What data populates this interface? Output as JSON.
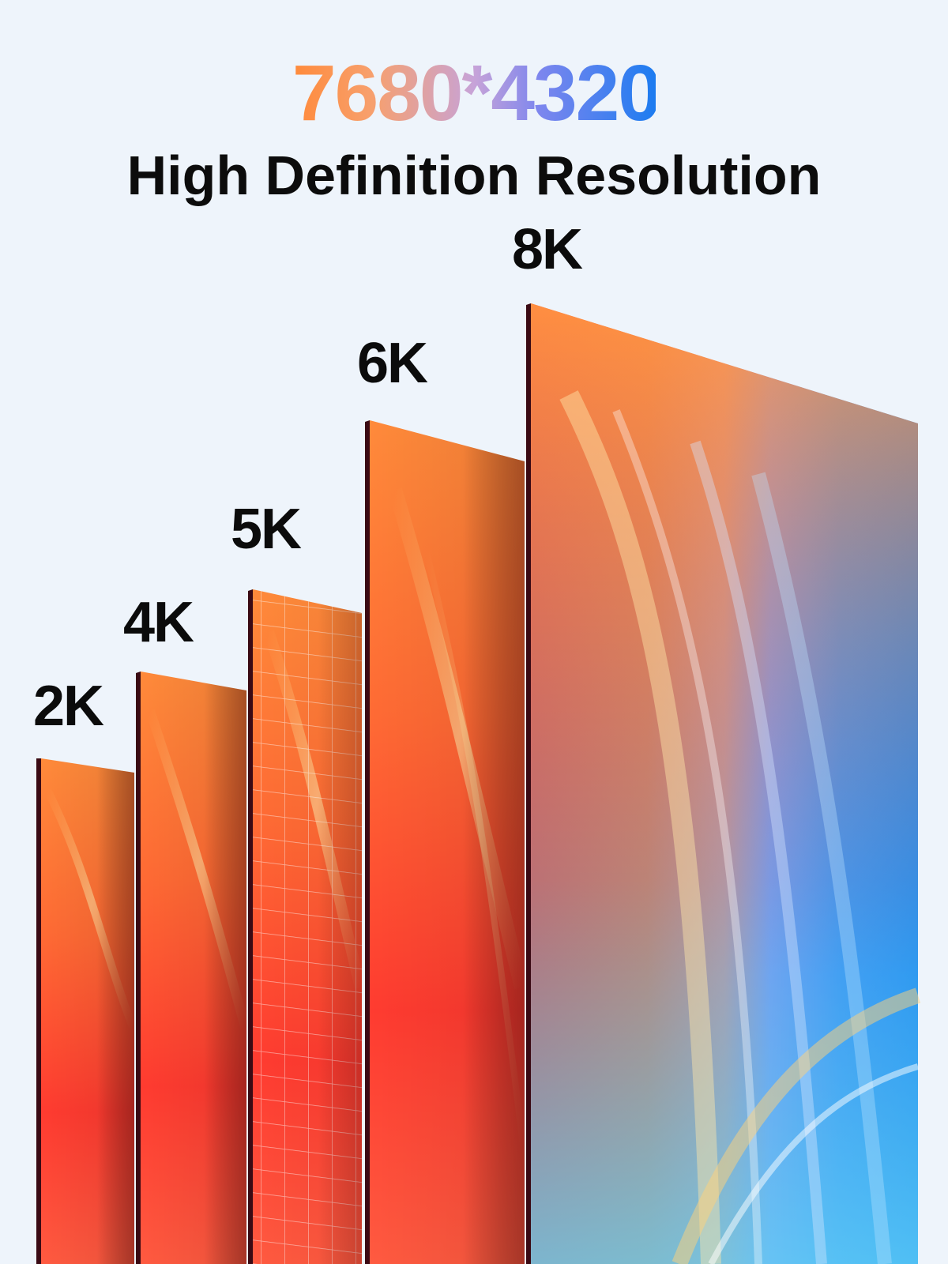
{
  "headline": "7680*4320",
  "subtitle": "High Definition Resolution",
  "panels": [
    {
      "label": "2K"
    },
    {
      "label": "4K"
    },
    {
      "label": "5K"
    },
    {
      "label": "6K"
    },
    {
      "label": "8K"
    }
  ],
  "colors": {
    "background": "#eef4fb",
    "warm": "#ff3b30",
    "orange": "#ff8a3a",
    "blue": "#1d7cf0",
    "cyan": "#3fb8ef",
    "text": "#0b0b0b"
  }
}
